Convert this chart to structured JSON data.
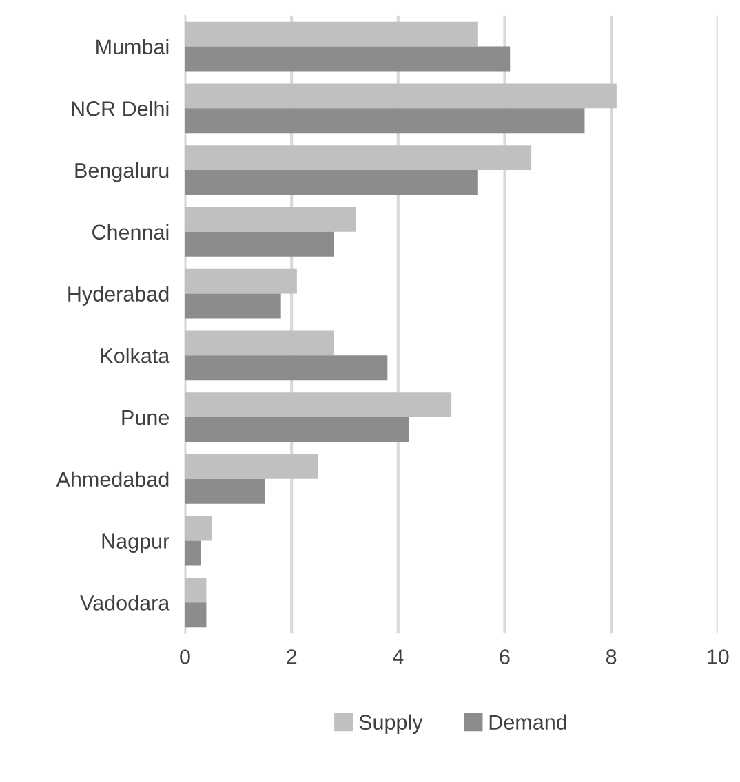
{
  "chart_data": {
    "type": "bar",
    "orientation": "horizontal",
    "categories": [
      "Mumbai",
      "NCR Delhi",
      "Bengaluru",
      "Chennai",
      "Hyderabad",
      "Kolkata",
      "Pune",
      "Ahmedabad",
      "Nagpur",
      "Vadodara"
    ],
    "series": [
      {
        "name": "Supply",
        "color": "#c0c0c0",
        "values": [
          5.5,
          8.1,
          6.5,
          3.2,
          2.1,
          2.8,
          5.0,
          2.5,
          0.5,
          0.4
        ]
      },
      {
        "name": "Demand",
        "color": "#8c8c8c",
        "values": [
          6.1,
          7.5,
          5.5,
          2.8,
          1.8,
          3.8,
          4.2,
          1.5,
          0.3,
          0.4
        ]
      }
    ],
    "xlim": [
      0,
      10
    ],
    "xticks": [
      0,
      2,
      4,
      6,
      8,
      10
    ],
    "grid": "x",
    "legend": "bottom"
  }
}
